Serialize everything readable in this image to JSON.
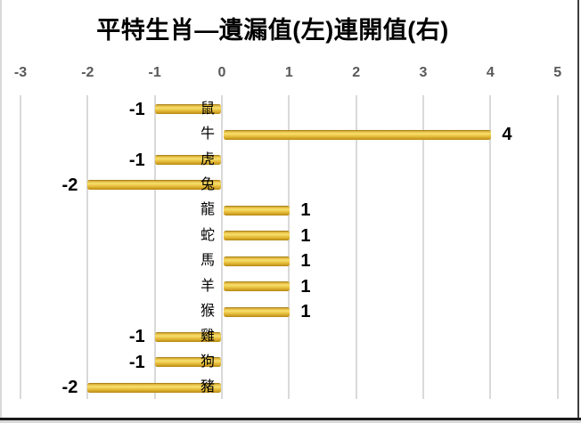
{
  "chart_data": {
    "type": "bar",
    "orientation": "horizontal",
    "title": "平特生肖—遺漏值(左)連開值(右)",
    "categories": [
      "鼠",
      "牛",
      "虎",
      "兔",
      "龍",
      "蛇",
      "馬",
      "羊",
      "猴",
      "雞",
      "狗",
      "豬"
    ],
    "values": [
      -1,
      4,
      -1,
      -2,
      1,
      1,
      1,
      1,
      1,
      -1,
      -1,
      -2
    ],
    "xlabel": "",
    "ylabel": "",
    "xlim": [
      -3,
      5
    ],
    "x_ticks": [
      -3,
      -2,
      -1,
      0,
      1,
      2,
      3,
      4,
      5
    ],
    "value_axis_position": "top",
    "grid": true,
    "gridlines": "vertical-major",
    "legend": "none",
    "data_labels": "shown-at-bar-end",
    "colors": {
      "bar": "#E2B53C",
      "bar_highlight": "#F6DE6E",
      "bar_shadow": "#8F6E10",
      "gridline": "#D9D9D9",
      "axis_tick_label": "#595959",
      "title": "#000000",
      "data_label": "#000000",
      "background": "#FFFFFF"
    }
  }
}
